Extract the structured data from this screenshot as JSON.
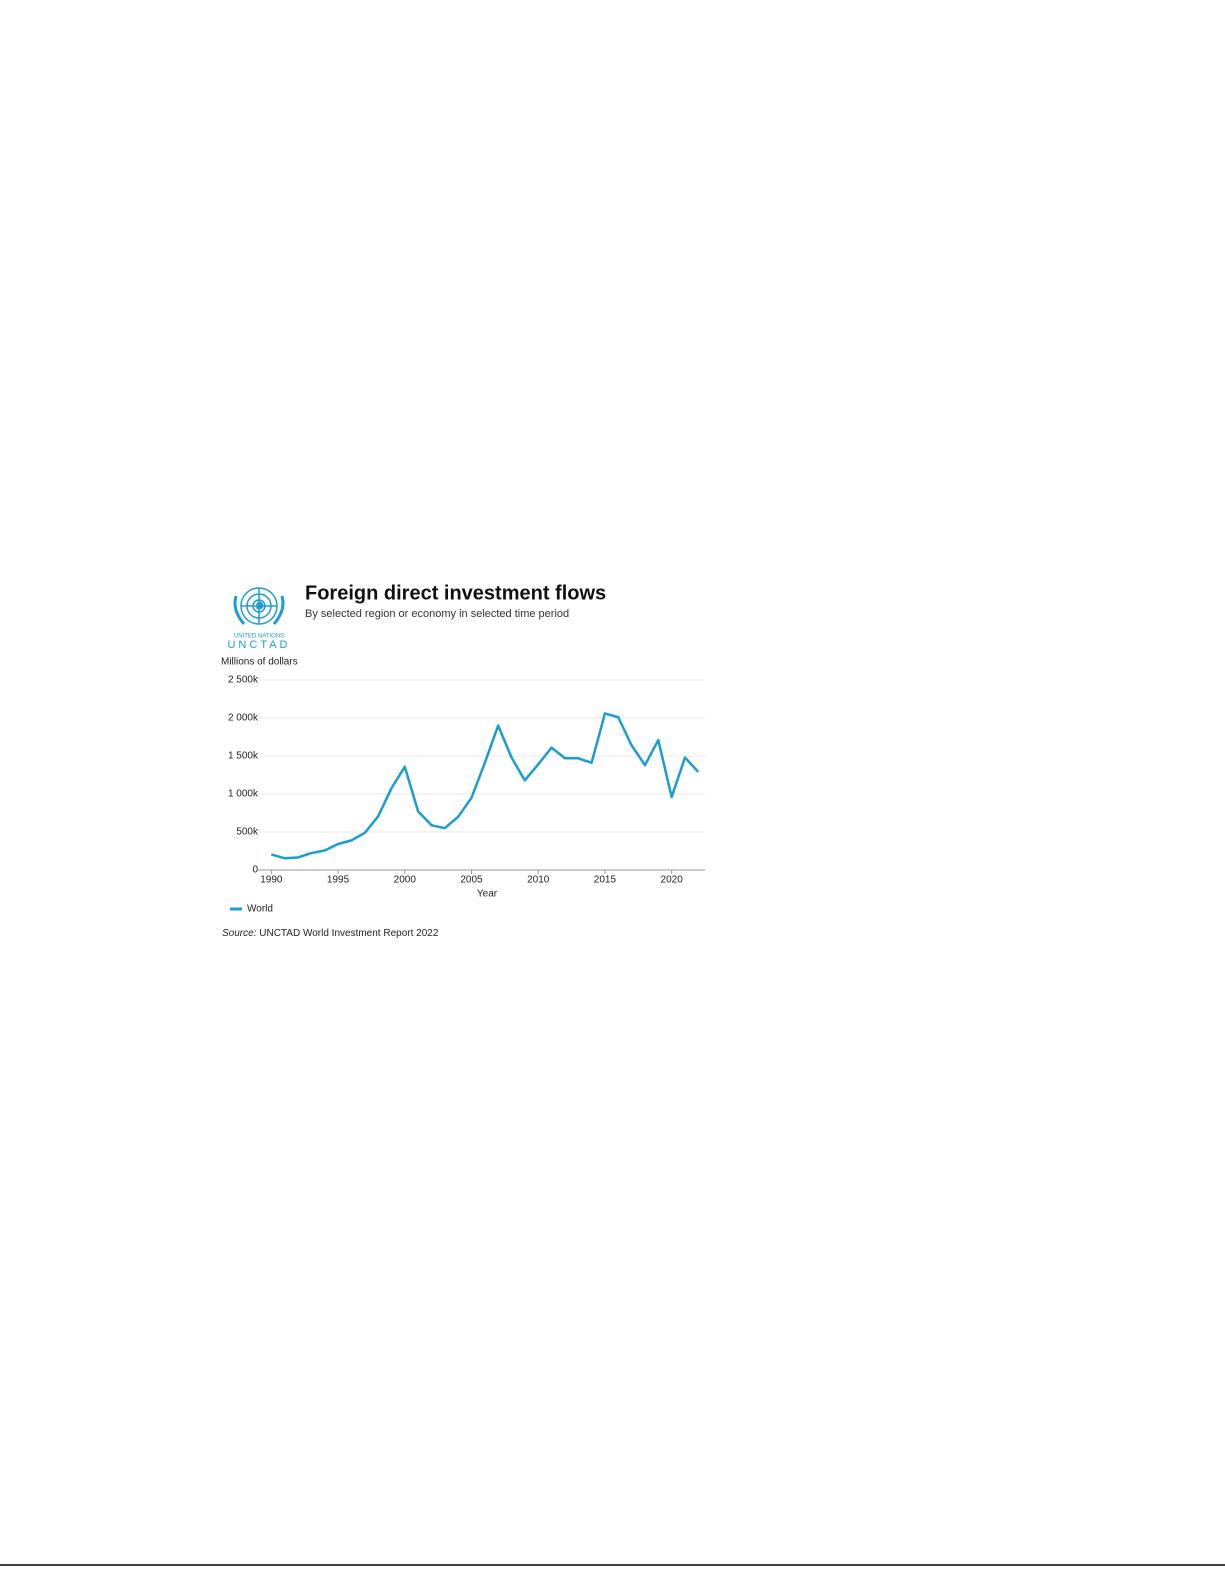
{
  "logo": {
    "org": "UNITED NATIONS",
    "name": "UNCTAD"
  },
  "chart_data": {
    "type": "line",
    "title": "Foreign direct investment flows",
    "subtitle": "By selected region or economy in selected time period",
    "y_label": "Millions of dollars",
    "x_label": "Year",
    "x": [
      1990,
      1991,
      1992,
      1993,
      1994,
      1995,
      1996,
      1997,
      1998,
      1999,
      2000,
      2001,
      2002,
      2003,
      2004,
      2005,
      2006,
      2007,
      2008,
      2009,
      2010,
      2011,
      2012,
      2013,
      2014,
      2015,
      2016,
      2017,
      2018,
      2019,
      2020,
      2021,
      2022
    ],
    "series": [
      {
        "name": "World",
        "color": "#1b9dd1",
        "values": [
          205000,
          154000,
          165000,
          223000,
          256000,
          342000,
          390000,
          488000,
          705000,
          1075000,
          1358000,
          772000,
          590000,
          550000,
          700000,
          950000,
          1410000,
          1900000,
          1480000,
          1180000,
          1390000,
          1610000,
          1470000,
          1470000,
          1410000,
          2060000,
          2010000,
          1640000,
          1380000,
          1710000,
          960000,
          1480000,
          1290000
        ]
      }
    ],
    "xlim": [
      1989,
      2022.5
    ],
    "ylim": [
      0,
      2500000
    ],
    "xticks": [
      1990,
      1995,
      2000,
      2005,
      2010,
      2015,
      2020
    ],
    "yticks": [
      0,
      {
        "value": 500000,
        "label": "500k"
      },
      {
        "value": 1000000,
        "label": "1 000k"
      },
      {
        "value": 1500000,
        "label": "1 500k"
      },
      {
        "value": 2000000,
        "label": "2 000k"
      },
      {
        "value": 2500000,
        "label": "2 500k"
      }
    ],
    "grid": true,
    "legend": "bottom-left",
    "source_label": "Source:",
    "source": "UNCTAD World Investment Report 2022"
  }
}
